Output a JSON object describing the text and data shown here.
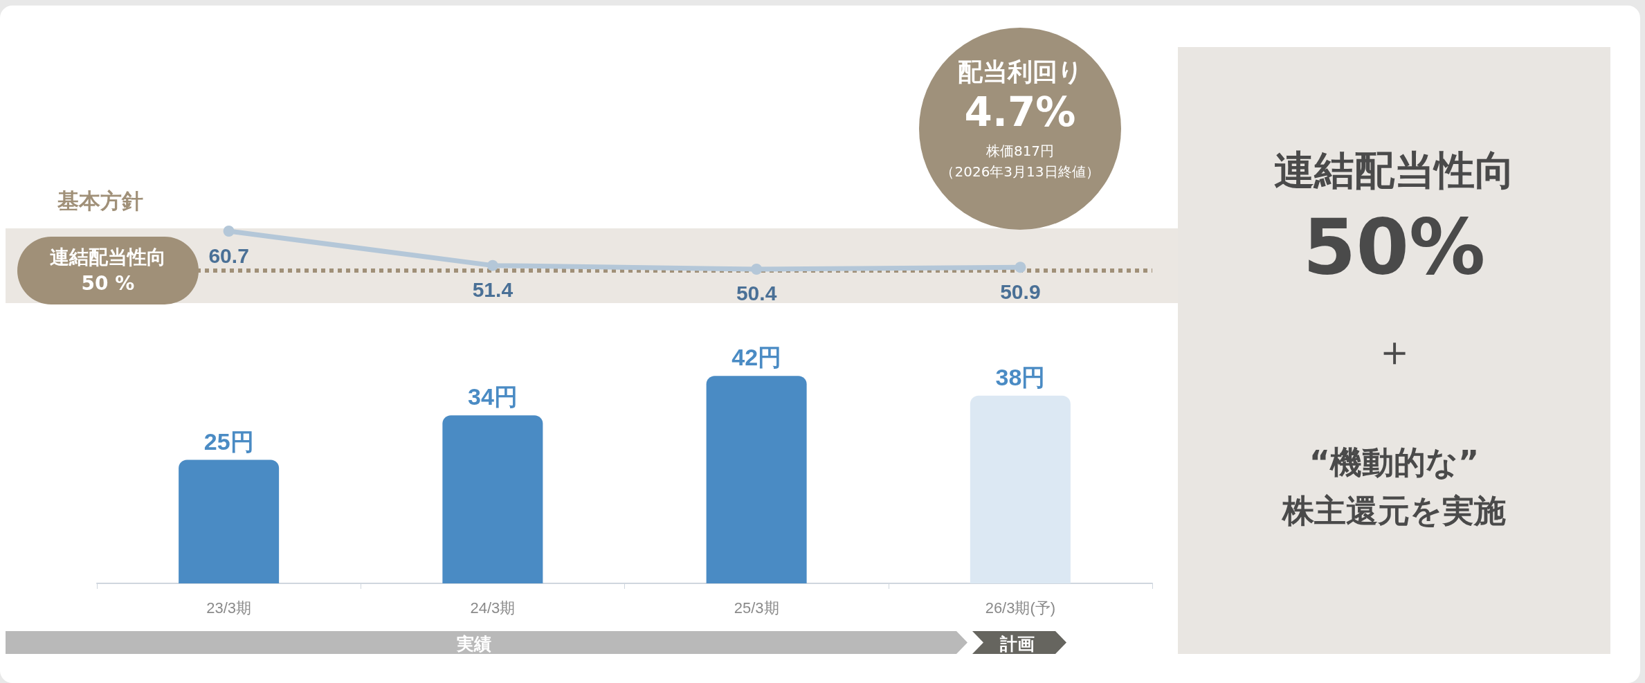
{
  "chart_data": [
    {
      "type": "line",
      "categories": [
        null,
        null,
        null,
        null
      ],
      "series": [
        {
          "color": "#b4c7d8",
          "values": [
            60.7,
            51.4,
            50.4,
            50.9
          ],
          "value_labels": [
            "60.7",
            "51.4",
            "50.4",
            "50.9"
          ]
        }
      ],
      "tick_labels": false,
      "marker": "circle",
      "line_style": "solid",
      "ref_lines": [
        {
          "axis": "y",
          "value": 50,
          "label": "連結配当性向 50 %",
          "color": "#a09078",
          "line_style": "dotted"
        }
      ],
      "annotations": [
        "基本方針",
        "配当利回り",
        "4.7%",
        "株価817円",
        "（2026年3月13日終値）"
      ]
    },
    {
      "type": "bar",
      "categories": [
        "23/3期",
        "24/3期",
        "25/3期",
        "26/3期(予)"
      ],
      "series": [
        {
          "values": [
            25,
            34,
            42,
            38
          ],
          "colors": [
            "#4a8bc4",
            "#4a8bc4",
            "#4a8bc4",
            "#dce8f3"
          ],
          "value_labels": [
            "25円",
            "34円",
            "42円",
            "38円"
          ]
        }
      ],
      "tick_labels": "x",
      "annotations": [
        "実績",
        "計画"
      ]
    },
    {
      "type": "other",
      "title": "連結配当性向",
      "subtitle": "50%",
      "annotations": [
        "＋",
        "“機動的な”",
        "株主還元を実施"
      ]
    }
  ]
}
